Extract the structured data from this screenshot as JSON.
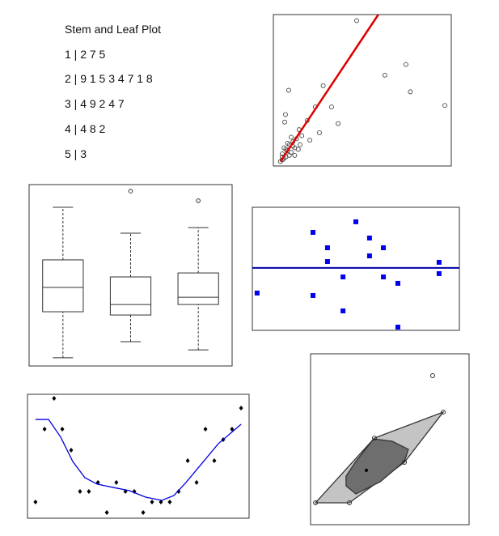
{
  "stem_leaf": {
    "title": "Stem and Leaf Plot",
    "rows": [
      "1 | 2 7 5",
      "2 | 9 1 5 3 4 7 1 8",
      "3 | 4 9 2 4 7",
      "4 | 4 8 2",
      "5 | 3"
    ]
  },
  "chart_data": [
    {
      "type": "scatter",
      "xlim": [
        0,
        100
      ],
      "ylim": [
        0,
        100
      ],
      "series": [
        {
          "type": "scatter",
          "marker": "circle-open",
          "color": "#444444",
          "x": [
            46.8,
            74.5,
            62.7,
            77,
            96.4,
            8.6,
            28,
            32.7,
            23.6,
            6.8,
            6.4,
            36.4,
            19,
            14.5,
            25.9,
            20.5,
            5,
            6,
            7,
            8,
            9,
            10,
            11,
            12,
            5,
            6,
            7,
            9,
            13,
            8,
            10,
            12,
            15,
            16,
            4,
            5,
            11,
            14
          ],
          "values": [
            96,
            67,
            60,
            49,
            40,
            50,
            53,
            39,
            39,
            34,
            29,
            28,
            30,
            24,
            22,
            17,
            8,
            12,
            6,
            10,
            14,
            9,
            16,
            12,
            4,
            5,
            11,
            7,
            18,
            15,
            19,
            7,
            14,
            20,
            3,
            6,
            13,
            11
          ]
        },
        {
          "type": "line",
          "color": "#dd0000",
          "x": [
            4,
            59
          ],
          "values": [
            3,
            100
          ]
        }
      ]
    },
    {
      "type": "box",
      "ylim": [
        0,
        100
      ],
      "boxes": [
        {
          "whisker_low": 4.5,
          "q1": 29.9,
          "median": 43.3,
          "q3": 58.5,
          "whisker_high": 87.5,
          "outliers": []
        },
        {
          "whisker_low": 13.4,
          "q1": 28.1,
          "median": 33.9,
          "q3": 49.1,
          "whisker_high": 73.2,
          "outliers": [
            96.4
          ]
        },
        {
          "whisker_low": 8.9,
          "q1": 33.9,
          "median": 37.9,
          "q3": 51.3,
          "whisker_high": 76.3,
          "outliers": [
            91.1
          ]
        }
      ]
    },
    {
      "type": "scatter",
      "xlim": [
        0,
        100
      ],
      "ylim": [
        0,
        100
      ],
      "series": [
        {
          "type": "scatter",
          "marker": "square",
          "color": "#0000ee",
          "x": [
            2.3,
            29.3,
            36.3,
            36.3,
            50,
            56.6,
            56.6,
            63.3,
            43.8,
            29.3,
            43.8,
            63.3,
            70.3,
            70.3,
            90.2,
            90.2
          ],
          "values": [
            30.3,
            79.6,
            67.1,
            55.9,
            88.2,
            75,
            60.5,
            67.1,
            43.4,
            28.3,
            15.8,
            43.4,
            38.2,
            2.6,
            55.3,
            46.1
          ]
        },
        {
          "type": "hline",
          "color": "#0000aa",
          "values": [
            50.7
          ]
        }
      ]
    },
    {
      "type": "scatter",
      "xlim": [
        0,
        100
      ],
      "ylim": [
        0,
        100
      ],
      "series": [
        {
          "type": "scatter",
          "marker": "diamond",
          "color": "#000000",
          "x": [
            3.6,
            7.7,
            12.0,
            15.7,
            19.7,
            23.7,
            27.7,
            31.8,
            35.8,
            40.1,
            44.2,
            48.2,
            52.2,
            56.2,
            60.2,
            64.2,
            68.2,
            72.3,
            76.3,
            80.3,
            84.3,
            88.3,
            92.3,
            96.4
          ],
          "values": [
            13.1,
            71.9,
            96.7,
            71.9,
            54.9,
            21.6,
            21.6,
            28.8,
            4.6,
            28.8,
            21.6,
            21.6,
            4.6,
            13.1,
            13.1,
            13.1,
            21.6,
            46.4,
            28.8,
            71.9,
            46.4,
            63.4,
            71.9,
            88.9
          ]
        },
        {
          "type": "line",
          "color": "#0000dd",
          "x": [
            3.6,
            9.5,
            15.0,
            20.4,
            25.9,
            31.4,
            38.7,
            46.0,
            53.3,
            60.6,
            66.1,
            71.5,
            78.8,
            86.1,
            96.4
          ],
          "values": [
            79.7,
            79.7,
            65.4,
            45.8,
            32.7,
            27.5,
            24.8,
            22.2,
            17.0,
            14.4,
            18.3,
            28.8,
            44.4,
            60.1,
            75.8
          ]
        }
      ]
    },
    {
      "type": "bag",
      "xlim": [
        0,
        100
      ],
      "ylim": [
        0,
        100
      ],
      "series": [
        {
          "type": "polygon",
          "color": "#c4c4c4",
          "x": [
            3.1,
            24.5,
            59.2,
            83.7,
            40.3
          ],
          "values": [
            12.8,
            12.8,
            36.5,
            65.9,
            50.7
          ]
        },
        {
          "type": "polygon",
          "color": "#6e6e6e",
          "x": [
            22.4,
            28.6,
            43.9,
            59.2,
            61.7,
            51.5,
            39.8,
            28.6,
            22.4
          ],
          "values": [
            22.7,
            18.0,
            25.1,
            37.0,
            44.1,
            48.8,
            50.2,
            37.0,
            28.4
          ]
        },
        {
          "type": "scatter",
          "marker": "circle-open",
          "color": "#222222",
          "x": [
            3.1,
            24.5,
            83.7,
            40.3,
            59.2,
            77.0
          ],
          "values": [
            12.8,
            12.8,
            65.9,
            50.7,
            36.5,
            87.2
          ]
        },
        {
          "type": "scatter",
          "marker": "dot",
          "color": "#000000",
          "x": [
            35.2
          ],
          "values": [
            31.8
          ]
        }
      ]
    }
  ]
}
